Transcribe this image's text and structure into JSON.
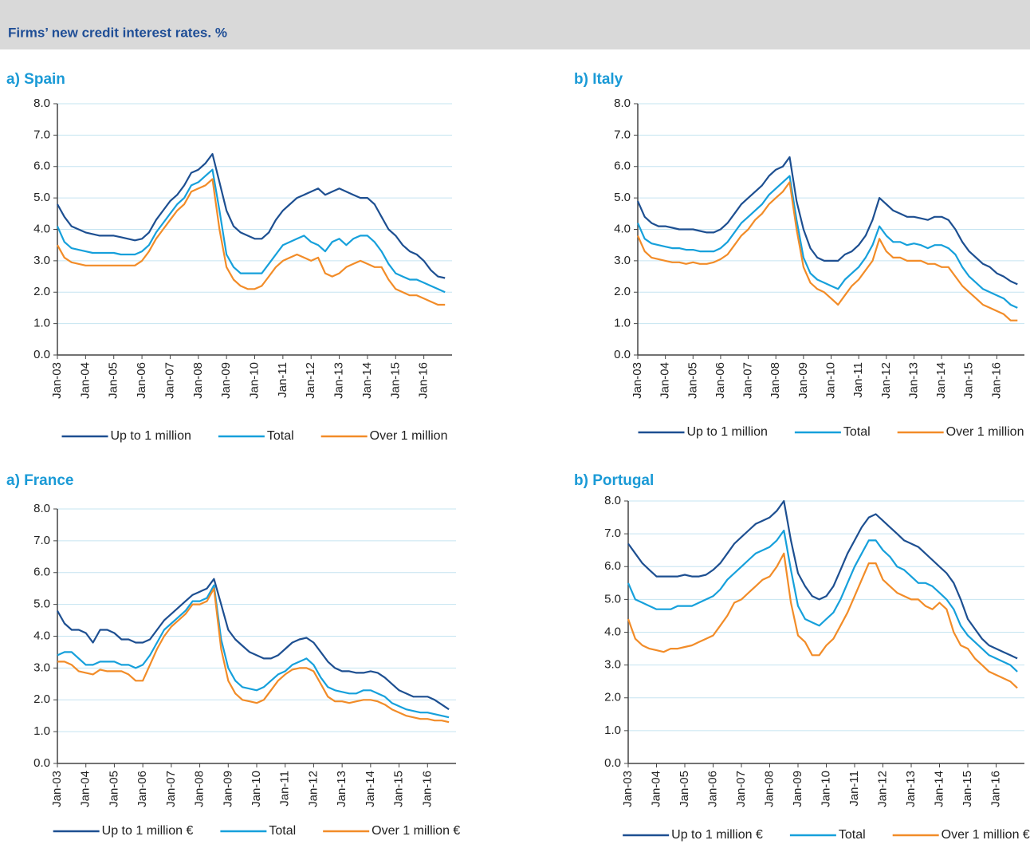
{
  "header": {
    "title": "Firms’ new credit interest rates. %"
  },
  "chart_data": [
    {
      "type": "line",
      "title": "a) Spain",
      "grid": true,
      "ylim": [
        0,
        8
      ],
      "yticks": [
        {
          "value": 0,
          "label": "0.0"
        },
        {
          "value": 1,
          "label": "1.0"
        },
        {
          "value": 2,
          "label": "2.0"
        },
        {
          "value": 3,
          "label": "3.0"
        },
        {
          "value": 4,
          "label": "4.0"
        },
        {
          "value": 5,
          "label": "5.0"
        },
        {
          "value": 6,
          "label": "6.0"
        },
        {
          "value": 7,
          "label": "7.0"
        },
        {
          "value": 8,
          "label": "8.0"
        }
      ],
      "categories": [
        "Jan-03",
        null,
        null,
        null,
        "Jan-04",
        null,
        null,
        null,
        "Jan-05",
        null,
        null,
        null,
        "Jan-06",
        null,
        null,
        null,
        "Jan-07",
        null,
        null,
        null,
        "Jan-08",
        null,
        null,
        null,
        "Jan-09",
        null,
        null,
        null,
        "Jan-10",
        null,
        null,
        null,
        "Jan-11",
        null,
        null,
        null,
        "Jan-12",
        null,
        null,
        null,
        "Jan-13",
        null,
        null,
        null,
        "Jan-14",
        null,
        null,
        null,
        "Jan-15",
        null,
        null,
        null,
        "Jan-16",
        null,
        null,
        null
      ],
      "series": [
        {
          "name": "Up to 1 million",
          "color": "#1d4f91",
          "values": [
            4.8,
            4.4,
            4.1,
            4.0,
            3.9,
            3.85,
            3.8,
            3.8,
            3.8,
            3.75,
            3.7,
            3.65,
            3.7,
            3.9,
            4.3,
            4.6,
            4.9,
            5.1,
            5.4,
            5.8,
            5.9,
            6.1,
            6.4,
            5.5,
            4.6,
            4.1,
            3.9,
            3.8,
            3.7,
            3.7,
            3.9,
            4.3,
            4.6,
            4.8,
            5.0,
            5.1,
            5.2,
            5.3,
            5.1,
            5.2,
            5.3,
            5.2,
            5.1,
            5.0,
            5.0,
            4.8,
            4.4,
            4.0,
            3.8,
            3.5,
            3.3,
            3.2,
            3.0,
            2.7,
            2.5,
            2.45
          ]
        },
        {
          "name": "Total",
          "color": "#16a0db",
          "values": [
            4.1,
            3.6,
            3.4,
            3.35,
            3.3,
            3.25,
            3.25,
            3.25,
            3.25,
            3.2,
            3.2,
            3.2,
            3.3,
            3.5,
            3.9,
            4.2,
            4.5,
            4.8,
            5.0,
            5.4,
            5.5,
            5.7,
            5.9,
            4.6,
            3.2,
            2.8,
            2.6,
            2.6,
            2.6,
            2.6,
            2.9,
            3.2,
            3.5,
            3.6,
            3.7,
            3.8,
            3.6,
            3.5,
            3.3,
            3.6,
            3.7,
            3.5,
            3.7,
            3.8,
            3.8,
            3.6,
            3.3,
            2.9,
            2.6,
            2.5,
            2.4,
            2.4,
            2.3,
            2.2,
            2.1,
            2.0
          ]
        },
        {
          "name": "Over 1 million",
          "color": "#f28c28",
          "values": [
            3.5,
            3.1,
            2.95,
            2.9,
            2.85,
            2.85,
            2.85,
            2.85,
            2.85,
            2.85,
            2.85,
            2.85,
            3.0,
            3.3,
            3.7,
            4.0,
            4.3,
            4.6,
            4.8,
            5.2,
            5.3,
            5.4,
            5.6,
            4.0,
            2.8,
            2.4,
            2.2,
            2.1,
            2.1,
            2.2,
            2.5,
            2.8,
            3.0,
            3.1,
            3.2,
            3.1,
            3.0,
            3.1,
            2.6,
            2.5,
            2.6,
            2.8,
            2.9,
            3.0,
            2.9,
            2.8,
            2.8,
            2.4,
            2.1,
            2.0,
            1.9,
            1.9,
            1.8,
            1.7,
            1.6,
            1.6
          ]
        }
      ]
    },
    {
      "type": "line",
      "title": "b) Italy",
      "grid": true,
      "ylim": [
        0,
        8
      ],
      "yticks": [
        {
          "value": 0,
          "label": "0.0"
        },
        {
          "value": 1,
          "label": "1.0"
        },
        {
          "value": 2,
          "label": "2.0"
        },
        {
          "value": 3,
          "label": "3.0"
        },
        {
          "value": 4,
          "label": "4.0"
        },
        {
          "value": 5,
          "label": "5.0"
        },
        {
          "value": 6,
          "label": "6.0"
        },
        {
          "value": 7,
          "label": "7.0"
        },
        {
          "value": 8,
          "label": "8.0"
        }
      ],
      "categories": [
        "Jan-03",
        null,
        null,
        null,
        "Jan-04",
        null,
        null,
        null,
        "Jan-05",
        null,
        null,
        null,
        "Jan-06",
        null,
        null,
        null,
        "Jan-07",
        null,
        null,
        null,
        "Jan-08",
        null,
        null,
        null,
        "Jan-09",
        null,
        null,
        null,
        "Jan-10",
        null,
        null,
        null,
        "Jan-11",
        null,
        null,
        null,
        "Jan-12",
        null,
        null,
        null,
        "Jan-13",
        null,
        null,
        null,
        "Jan-14",
        null,
        null,
        null,
        "Jan-15",
        null,
        null,
        null,
        "Jan-16",
        null,
        null,
        null
      ],
      "series": [
        {
          "name": "Up to 1 million",
          "color": "#1d4f91",
          "values": [
            4.9,
            4.4,
            4.2,
            4.1,
            4.1,
            4.05,
            4.0,
            4.0,
            4.0,
            3.95,
            3.9,
            3.9,
            4.0,
            4.2,
            4.5,
            4.8,
            5.0,
            5.2,
            5.4,
            5.7,
            5.9,
            6.0,
            6.3,
            4.9,
            4.0,
            3.4,
            3.1,
            3.0,
            3.0,
            3.0,
            3.2,
            3.3,
            3.5,
            3.8,
            4.3,
            5.0,
            4.8,
            4.6,
            4.5,
            4.4,
            4.4,
            4.35,
            4.3,
            4.4,
            4.4,
            4.3,
            4.0,
            3.6,
            3.3,
            3.1,
            2.9,
            2.8,
            2.6,
            2.5,
            2.35,
            2.25
          ]
        },
        {
          "name": "Total",
          "color": "#16a0db",
          "values": [
            4.2,
            3.7,
            3.55,
            3.5,
            3.45,
            3.4,
            3.4,
            3.35,
            3.35,
            3.3,
            3.3,
            3.3,
            3.4,
            3.6,
            3.9,
            4.2,
            4.4,
            4.6,
            4.8,
            5.1,
            5.3,
            5.5,
            5.7,
            4.3,
            3.1,
            2.6,
            2.4,
            2.3,
            2.2,
            2.1,
            2.4,
            2.6,
            2.8,
            3.1,
            3.5,
            4.1,
            3.8,
            3.6,
            3.6,
            3.5,
            3.55,
            3.5,
            3.4,
            3.5,
            3.5,
            3.4,
            3.2,
            2.8,
            2.5,
            2.3,
            2.1,
            2.0,
            1.9,
            1.8,
            1.6,
            1.5
          ]
        },
        {
          "name": "Over 1 million",
          "color": "#f28c28",
          "values": [
            3.8,
            3.3,
            3.1,
            3.05,
            3.0,
            2.95,
            2.95,
            2.9,
            2.95,
            2.9,
            2.9,
            2.95,
            3.05,
            3.2,
            3.5,
            3.8,
            4.0,
            4.3,
            4.5,
            4.8,
            5.0,
            5.2,
            5.5,
            4.0,
            2.8,
            2.3,
            2.1,
            2.0,
            1.8,
            1.6,
            1.9,
            2.2,
            2.4,
            2.7,
            3.0,
            3.7,
            3.3,
            3.1,
            3.1,
            3.0,
            3.0,
            3.0,
            2.9,
            2.9,
            2.8,
            2.8,
            2.5,
            2.2,
            2.0,
            1.8,
            1.6,
            1.5,
            1.4,
            1.3,
            1.1,
            1.1
          ]
        }
      ]
    },
    {
      "type": "line",
      "title": "a) France",
      "grid": true,
      "ylim": [
        0,
        8
      ],
      "yticks": [
        {
          "value": 0,
          "label": "0.0"
        },
        {
          "value": 1,
          "label": "1.0"
        },
        {
          "value": 2,
          "label": "2.0"
        },
        {
          "value": 3,
          "label": "3.0"
        },
        {
          "value": 4,
          "label": "4.0"
        },
        {
          "value": 5,
          "label": "5.0"
        },
        {
          "value": 6,
          "label": "6.0"
        },
        {
          "value": 7,
          "label": "7.0"
        },
        {
          "value": 8,
          "label": "8.0"
        }
      ],
      "categories": [
        "Jan-03",
        null,
        null,
        null,
        "Jan-04",
        null,
        null,
        null,
        "Jan-05",
        null,
        null,
        null,
        "Jan-06",
        null,
        null,
        null,
        "Jan-07",
        null,
        null,
        null,
        "Jan-08",
        null,
        null,
        null,
        "Jan-09",
        null,
        null,
        null,
        "Jan-10",
        null,
        null,
        null,
        "Jan-11",
        null,
        null,
        null,
        "Jan-12",
        null,
        null,
        null,
        "Jan-13",
        null,
        null,
        null,
        "Jan-14",
        null,
        null,
        null,
        "Jan-15",
        null,
        null,
        null,
        "Jan-16",
        null,
        null,
        null
      ],
      "series": [
        {
          "name": "Up to 1 million €",
          "color": "#1d4f91",
          "values": [
            4.8,
            4.4,
            4.2,
            4.2,
            4.1,
            3.8,
            4.2,
            4.2,
            4.1,
            3.9,
            3.9,
            3.8,
            3.8,
            3.9,
            4.2,
            4.5,
            4.7,
            4.9,
            5.1,
            5.3,
            5.4,
            5.5,
            5.8,
            5.0,
            4.2,
            3.9,
            3.7,
            3.5,
            3.4,
            3.3,
            3.3,
            3.4,
            3.6,
            3.8,
            3.9,
            3.95,
            3.8,
            3.5,
            3.2,
            3.0,
            2.9,
            2.9,
            2.85,
            2.85,
            2.9,
            2.85,
            2.7,
            2.5,
            2.3,
            2.2,
            2.1,
            2.1,
            2.1,
            2.0,
            1.85,
            1.7
          ]
        },
        {
          "name": "Total",
          "color": "#16a0db",
          "values": [
            3.4,
            3.5,
            3.5,
            3.3,
            3.1,
            3.1,
            3.2,
            3.2,
            3.2,
            3.1,
            3.1,
            3.0,
            3.1,
            3.4,
            3.8,
            4.2,
            4.4,
            4.6,
            4.8,
            5.1,
            5.1,
            5.2,
            5.6,
            3.9,
            3.0,
            2.6,
            2.4,
            2.35,
            2.3,
            2.4,
            2.6,
            2.8,
            2.9,
            3.1,
            3.2,
            3.3,
            3.1,
            2.7,
            2.4,
            2.3,
            2.25,
            2.2,
            2.2,
            2.3,
            2.3,
            2.2,
            2.1,
            1.9,
            1.8,
            1.7,
            1.65,
            1.6,
            1.6,
            1.55,
            1.5,
            1.45
          ]
        },
        {
          "name": "Over 1 million €",
          "color": "#f28c28",
          "values": [
            3.2,
            3.2,
            3.1,
            2.9,
            2.85,
            2.8,
            2.95,
            2.9,
            2.9,
            2.9,
            2.8,
            2.6,
            2.6,
            3.1,
            3.6,
            4.0,
            4.3,
            4.5,
            4.7,
            5.0,
            5.0,
            5.1,
            5.5,
            3.6,
            2.6,
            2.2,
            2.0,
            1.95,
            1.9,
            2.0,
            2.3,
            2.6,
            2.8,
            2.95,
            3.0,
            3.0,
            2.9,
            2.5,
            2.1,
            1.95,
            1.95,
            1.9,
            1.95,
            2.0,
            2.0,
            1.95,
            1.85,
            1.7,
            1.6,
            1.5,
            1.45,
            1.4,
            1.4,
            1.35,
            1.35,
            1.3
          ]
        }
      ]
    },
    {
      "type": "line",
      "title": "b) Portugal",
      "grid": true,
      "ylim": [
        0,
        8
      ],
      "yticks": [
        {
          "value": 0,
          "label": "0.0"
        },
        {
          "value": 1,
          "label": "1.0"
        },
        {
          "value": 2,
          "label": "2.0"
        },
        {
          "value": 3,
          "label": "3.0"
        },
        {
          "value": 4,
          "label": "4.0"
        },
        {
          "value": 5,
          "label": "5.0"
        },
        {
          "value": 6,
          "label": "6.0"
        },
        {
          "value": 7,
          "label": "7.0"
        },
        {
          "value": 8,
          "label": "8.0"
        }
      ],
      "categories": [
        "Jan-03",
        null,
        null,
        null,
        "Jan-04",
        null,
        null,
        null,
        "Jan-05",
        null,
        null,
        null,
        "Jan-06",
        null,
        null,
        null,
        "Jan-07",
        null,
        null,
        null,
        "Jan-08",
        null,
        null,
        null,
        "Jan-09",
        null,
        null,
        null,
        "Jan-10",
        null,
        null,
        null,
        "Jan-11",
        null,
        null,
        null,
        "Jan-12",
        null,
        null,
        null,
        "Jan-13",
        null,
        null,
        null,
        "Jan-14",
        null,
        null,
        null,
        "Jan-15",
        null,
        null,
        null,
        "Jan-16",
        null,
        null,
        null
      ],
      "series": [
        {
          "name": "Up to 1 million €",
          "color": "#1d4f91",
          "values": [
            6.7,
            6.4,
            6.1,
            5.9,
            5.7,
            5.7,
            5.7,
            5.7,
            5.75,
            5.7,
            5.7,
            5.75,
            5.9,
            6.1,
            6.4,
            6.7,
            6.9,
            7.1,
            7.3,
            7.4,
            7.5,
            7.7,
            8.0,
            6.8,
            5.8,
            5.4,
            5.1,
            5.0,
            5.1,
            5.4,
            5.9,
            6.4,
            6.8,
            7.2,
            7.5,
            7.6,
            7.4,
            7.2,
            7.0,
            6.8,
            6.7,
            6.6,
            6.4,
            6.2,
            6.0,
            5.8,
            5.5,
            5.0,
            4.4,
            4.1,
            3.8,
            3.6,
            3.5,
            3.4,
            3.3,
            3.2
          ]
        },
        {
          "name": "Total",
          "color": "#16a0db",
          "values": [
            5.5,
            5.0,
            4.9,
            4.8,
            4.7,
            4.7,
            4.7,
            4.8,
            4.8,
            4.8,
            4.9,
            5.0,
            5.1,
            5.3,
            5.6,
            5.8,
            6.0,
            6.2,
            6.4,
            6.5,
            6.6,
            6.8,
            7.1,
            5.9,
            4.8,
            4.4,
            4.3,
            4.2,
            4.4,
            4.6,
            5.0,
            5.5,
            6.0,
            6.4,
            6.8,
            6.8,
            6.5,
            6.3,
            6.0,
            5.9,
            5.7,
            5.5,
            5.5,
            5.4,
            5.2,
            5.0,
            4.7,
            4.2,
            3.9,
            3.7,
            3.5,
            3.3,
            3.2,
            3.1,
            3.0,
            2.8
          ]
        },
        {
          "name": "Over 1 million €",
          "color": "#f28c28",
          "values": [
            4.4,
            3.8,
            3.6,
            3.5,
            3.45,
            3.4,
            3.5,
            3.5,
            3.55,
            3.6,
            3.7,
            3.8,
            3.9,
            4.2,
            4.5,
            4.9,
            5.0,
            5.2,
            5.4,
            5.6,
            5.7,
            6.0,
            6.4,
            4.9,
            3.9,
            3.7,
            3.3,
            3.3,
            3.6,
            3.8,
            4.2,
            4.6,
            5.1,
            5.6,
            6.1,
            6.1,
            5.6,
            5.4,
            5.2,
            5.1,
            5.0,
            5.0,
            4.8,
            4.7,
            4.9,
            4.7,
            4.0,
            3.6,
            3.5,
            3.2,
            3.0,
            2.8,
            2.7,
            2.6,
            2.5,
            2.3
          ]
        }
      ]
    }
  ]
}
